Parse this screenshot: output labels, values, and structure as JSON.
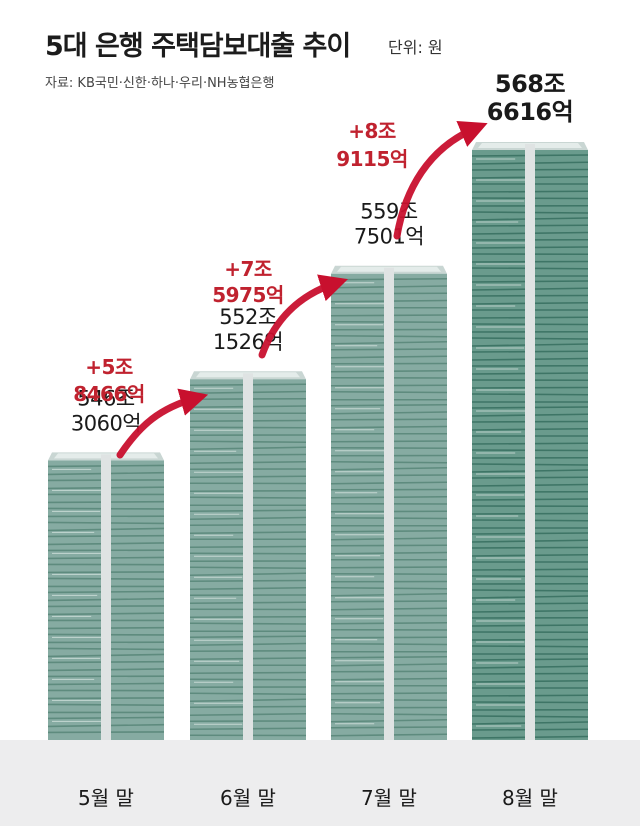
{
  "header": {
    "title": "5대 은행 주택담보대출 추이",
    "unit": "단위: 원",
    "source": "자료: KB국민·신한·하나·우리·NH농협은행"
  },
  "chart_data": {
    "type": "bar",
    "title": "5대 은행 주택담보대출 추이",
    "unit": "원",
    "categories": [
      "5월 말",
      "6월 말",
      "7월 말",
      "8월 말"
    ],
    "values_trillion_won": [
      546.306,
      552.1526,
      559.7501,
      568.6616
    ],
    "value_labels": [
      [
        "546조",
        "3060억"
      ],
      [
        "552조",
        "1526억"
      ],
      [
        "559조",
        "7501억"
      ],
      [
        "568조",
        "6616억"
      ]
    ],
    "changes": [
      [
        "+5조",
        "8466억"
      ],
      [
        "+7조",
        "5975억"
      ],
      [
        "+8조",
        "9115억"
      ]
    ],
    "colors": {
      "bar": "#86aba2",
      "bar_dark": "#5e8b7e",
      "bar_last": "#6a9b8d",
      "bar_last_dark": "#3e7566",
      "increase": "#c0222f",
      "arrow": "#c8102e",
      "text": "#1a1a1a",
      "background_band": "#ededee"
    }
  }
}
